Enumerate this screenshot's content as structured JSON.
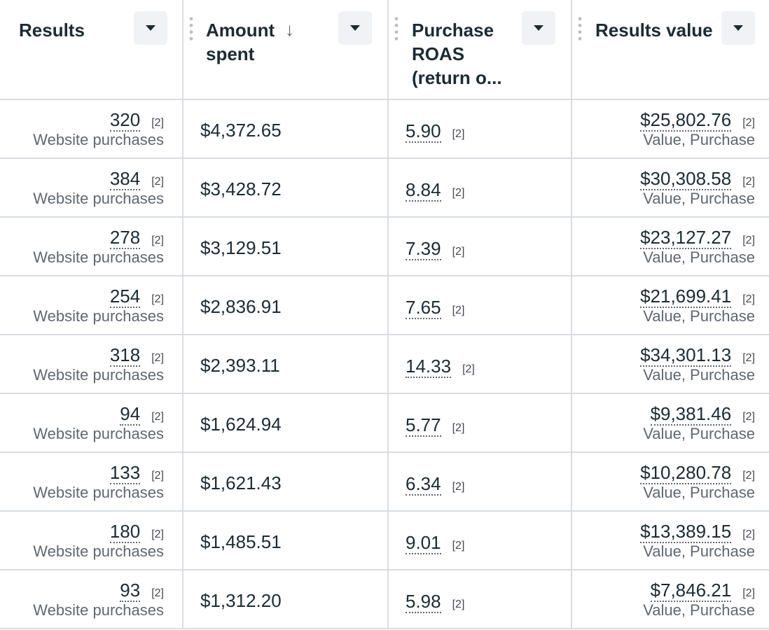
{
  "columns": [
    {
      "title": "Results"
    },
    {
      "title": "Amount spent"
    },
    {
      "title": "Purchase ROAS (return o..."
    },
    {
      "title": "Results value"
    }
  ],
  "reference_mark": "[2]",
  "rows": [
    {
      "results": "320",
      "results_label": "Website purchases",
      "amount": "$4,372.65",
      "roas": "5.90",
      "value": "$25,802.76",
      "value_label": "Value, Purchase"
    },
    {
      "results": "384",
      "results_label": "Website purchases",
      "amount": "$3,428.72",
      "roas": "8.84",
      "value": "$30,308.58",
      "value_label": "Value, Purchase"
    },
    {
      "results": "278",
      "results_label": "Website purchases",
      "amount": "$3,129.51",
      "roas": "7.39",
      "value": "$23,127.27",
      "value_label": "Value, Purchase"
    },
    {
      "results": "254",
      "results_label": "Website purchases",
      "amount": "$2,836.91",
      "roas": "7.65",
      "value": "$21,699.41",
      "value_label": "Value, Purchase"
    },
    {
      "results": "318",
      "results_label": "Website purchases",
      "amount": "$2,393.11",
      "roas": "14.33",
      "value": "$34,301.13",
      "value_label": "Value, Purchase"
    },
    {
      "results": "94",
      "results_label": "Website purchases",
      "amount": "$1,624.94",
      "roas": "5.77",
      "value": "$9,381.46",
      "value_label": "Value, Purchase"
    },
    {
      "results": "133",
      "results_label": "Website purchases",
      "amount": "$1,621.43",
      "roas": "6.34",
      "value": "$10,280.78",
      "value_label": "Value, Purchase"
    },
    {
      "results": "180",
      "results_label": "Website purchases",
      "amount": "$1,485.51",
      "roas": "9.01",
      "value": "$13,389.15",
      "value_label": "Value, Purchase"
    },
    {
      "results": "93",
      "results_label": "Website purchases",
      "amount": "$1,312.20",
      "roas": "5.98",
      "value": "$7,846.21",
      "value_label": "Value, Purchase"
    }
  ]
}
